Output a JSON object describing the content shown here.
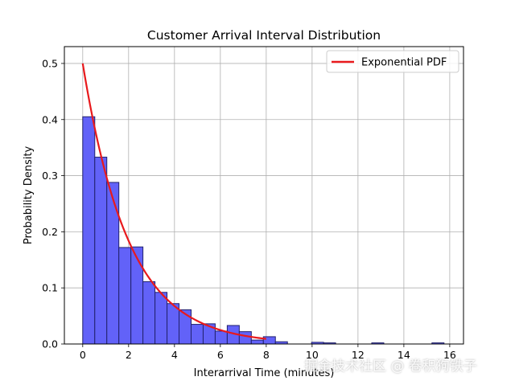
{
  "chart_data": {
    "type": "bar",
    "title": "Customer Arrival Interval Distribution",
    "xlabel": "Interarrival Time (minutes)",
    "ylabel": "Probability Density",
    "xlim": [
      -0.8,
      16.6
    ],
    "ylim": [
      0,
      0.53
    ],
    "xticks": [
      0,
      2,
      4,
      6,
      8,
      10,
      12,
      14,
      16
    ],
    "yticks": [
      0.0,
      0.1,
      0.2,
      0.3,
      0.4,
      0.5
    ],
    "xtick_labels": [
      "0",
      "2",
      "4",
      "6",
      "8",
      "10",
      "12",
      "14",
      "16"
    ],
    "ytick_labels": [
      "0.0",
      "0.1",
      "0.2",
      "0.3",
      "0.4",
      "0.5"
    ],
    "grid": true,
    "legend_placement": "top-right",
    "histogram": {
      "bin_start": 0.0,
      "bin_width": 0.525,
      "values": [
        0.405,
        0.333,
        0.288,
        0.172,
        0.173,
        0.111,
        0.092,
        0.072,
        0.061,
        0.035,
        0.036,
        0.023,
        0.033,
        0.022,
        0.007,
        0.013,
        0.004,
        0.0,
        0.0,
        0.003,
        0.002,
        0.0,
        0.0,
        0.0,
        0.002,
        0.0,
        0.0,
        0.0,
        0.0,
        0.002
      ]
    },
    "series": [
      {
        "name": "Exponential PDF",
        "function": "exponential",
        "rate": 0.5,
        "x_range": [
          0,
          8
        ],
        "color": "#e8191c"
      }
    ],
    "colors": {
      "bar_fill": "#6262f8",
      "bar_edge": "#22226e",
      "line": "#e8191c",
      "grid": "#b0b0b0"
    }
  },
  "watermark": "掘金技术社区 @ 卷积狗铁子"
}
